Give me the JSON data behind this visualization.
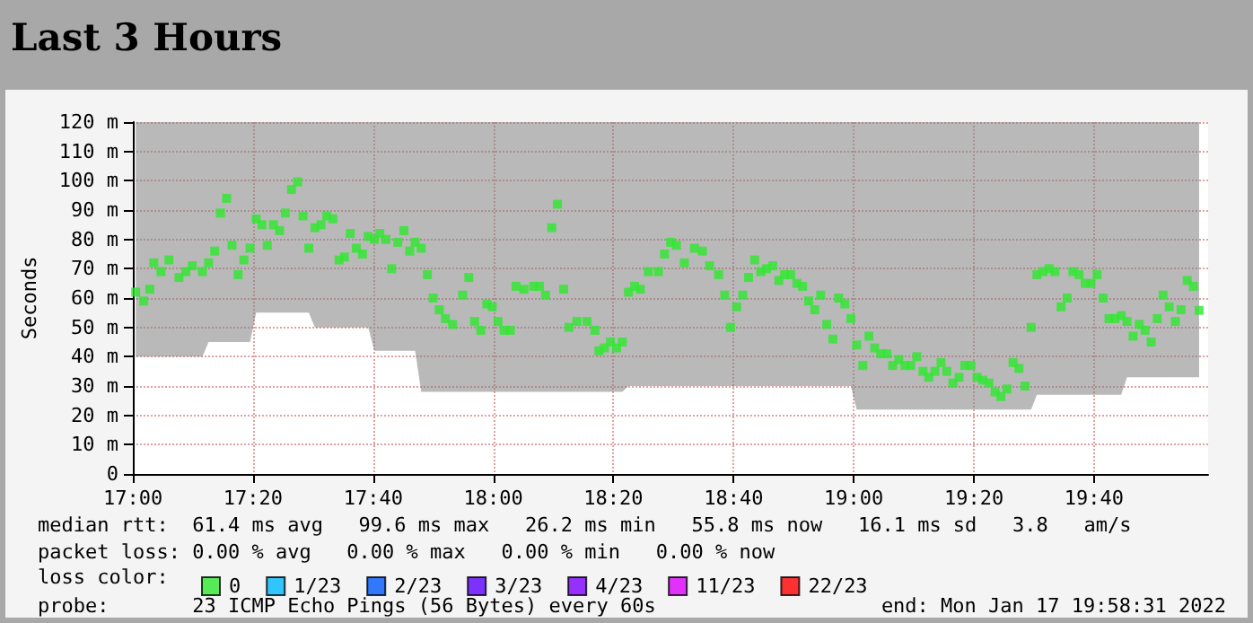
{
  "chart_data": {
    "type": "scatter",
    "title": "Last 3 Hours",
    "ylabel": "Seconds",
    "legend_title": "loss color:",
    "legend": "bottom",
    "grid": true,
    "marker": "square",
    "xlim": [
      17,
      19.983
    ],
    "xticks": [
      {
        "value": 17,
        "label": "17:00"
      },
      {
        "value": 17.3333,
        "label": "17:20"
      },
      {
        "value": 17.6667,
        "label": "17:40"
      },
      {
        "value": 18,
        "label": "18:00"
      },
      {
        "value": 18.3333,
        "label": "18:20"
      },
      {
        "value": 18.6667,
        "label": "18:40"
      },
      {
        "value": 19,
        "label": "19:00"
      },
      {
        "value": 19.3333,
        "label": "19:20"
      },
      {
        "value": 19.6667,
        "label": "19:40"
      }
    ],
    "ylim": [
      0,
      120
    ],
    "yticks": [
      {
        "value": 0,
        "label": "0"
      },
      {
        "value": 10,
        "label": "10 m"
      },
      {
        "value": 20,
        "label": "20 m"
      },
      {
        "value": 30,
        "label": "30 m"
      },
      {
        "value": 40,
        "label": "40 m"
      },
      {
        "value": 50,
        "label": "50 m"
      },
      {
        "value": 60,
        "label": "60 m"
      },
      {
        "value": 70,
        "label": "70 m"
      },
      {
        "value": 80,
        "label": "80 m"
      },
      {
        "value": 90,
        "label": "90 m"
      },
      {
        "value": 100,
        "label": "100 m"
      },
      {
        "value": 110,
        "label": "110 m"
      },
      {
        "value": 120,
        "label": "120 m"
      }
    ],
    "series": [
      {
        "name": "0",
        "color": "#2ee82e",
        "x": [
          17.008,
          17.03,
          17.047,
          17.058,
          17.078,
          17.1,
          17.128,
          17.147,
          17.165,
          17.193,
          17.21,
          17.227,
          17.243,
          17.26,
          17.275,
          17.292,
          17.308,
          17.325,
          17.342,
          17.358,
          17.373,
          17.39,
          17.407,
          17.423,
          17.44,
          17.457,
          17.472,
          17.488,
          17.505,
          17.522,
          17.538,
          17.555,
          17.572,
          17.587,
          17.603,
          17.62,
          17.637,
          17.653,
          17.67,
          17.685,
          17.702,
          17.718,
          17.735,
          17.752,
          17.768,
          17.783,
          17.8,
          17.817,
          17.833,
          17.85,
          17.867,
          17.887,
          17.915,
          17.932,
          17.948,
          17.965,
          17.982,
          17.997,
          18.013,
          18.03,
          18.047,
          18.063,
          18.085,
          18.112,
          18.128,
          18.145,
          18.162,
          18.178,
          18.195,
          18.21,
          18.232,
          18.26,
          18.282,
          18.293,
          18.308,
          18.325,
          18.342,
          18.358,
          18.375,
          18.392,
          18.408,
          18.43,
          18.458,
          18.475,
          18.492,
          18.508,
          18.53,
          18.558,
          18.58,
          18.6,
          18.625,
          18.642,
          18.658,
          18.675,
          18.692,
          18.708,
          18.725,
          18.742,
          18.758,
          18.775,
          18.792,
          18.808,
          18.825,
          18.842,
          18.858,
          18.875,
          18.892,
          18.908,
          18.925,
          18.942,
          18.958,
          18.975,
          18.992,
          19.008,
          19.025,
          19.042,
          19.058,
          19.075,
          19.092,
          19.108,
          19.125,
          19.142,
          19.158,
          19.175,
          19.192,
          19.208,
          19.225,
          19.242,
          19.258,
          19.275,
          19.292,
          19.308,
          19.325,
          19.342,
          19.358,
          19.375,
          19.392,
          19.408,
          19.425,
          19.442,
          19.458,
          19.475,
          19.492,
          19.508,
          19.525,
          19.542,
          19.558,
          19.575,
          19.592,
          19.608,
          19.625,
          19.642,
          19.658,
          19.675,
          19.692,
          19.708,
          19.725,
          19.742,
          19.758,
          19.775,
          19.792,
          19.808,
          19.825,
          19.842,
          19.858,
          19.875,
          19.892,
          19.908,
          19.925,
          19.942,
          19.958
        ],
        "values": [
          62,
          59,
          63,
          72,
          69,
          73,
          67,
          69,
          71,
          69,
          72,
          76,
          89,
          94,
          78,
          68,
          73,
          77,
          87,
          85,
          78,
          85,
          83,
          89,
          97,
          99.6,
          88,
          77,
          84,
          85,
          88,
          87,
          73,
          74,
          82,
          77,
          75,
          81,
          80,
          82,
          80,
          70,
          79,
          83,
          76,
          79,
          77,
          68,
          60,
          56,
          53,
          51,
          61,
          67,
          52,
          49,
          58,
          57,
          52,
          49,
          49,
          64,
          63,
          64,
          64,
          61,
          84,
          92,
          63,
          50,
          52,
          52,
          49,
          42,
          43,
          45,
          43,
          45,
          62,
          64,
          63,
          69,
          69,
          75,
          79,
          78,
          72,
          77,
          76,
          71,
          68,
          61,
          50,
          57,
          61,
          67,
          73,
          69,
          70,
          71,
          66,
          68,
          68,
          65,
          64,
          59,
          56,
          61,
          51,
          46,
          60,
          58,
          53,
          44,
          37,
          47,
          43,
          41,
          41,
          37,
          39,
          37,
          37,
          40,
          35,
          33,
          35,
          38,
          35,
          31,
          33,
          37,
          37,
          33,
          32,
          31,
          28,
          26.4,
          29,
          38,
          36,
          30,
          50,
          68,
          69,
          70,
          69,
          57,
          60,
          69,
          68,
          65,
          65,
          68,
          60,
          53,
          53,
          54,
          52,
          47,
          51,
          49,
          45,
          53,
          61,
          57,
          52,
          56,
          66,
          64,
          55.8
        ],
        "lower": [
          40,
          40,
          40,
          40,
          40,
          40,
          40,
          40,
          40,
          40,
          45,
          45,
          45,
          45,
          45,
          45,
          45,
          45,
          55,
          55,
          55,
          55,
          55,
          55,
          55,
          55,
          55,
          55,
          50,
          50,
          50,
          50,
          50,
          50,
          50,
          50,
          50,
          50,
          42,
          42,
          42,
          42,
          42,
          42,
          42,
          42,
          28,
          28,
          28,
          28,
          28,
          28,
          28,
          28,
          28,
          28,
          28,
          28,
          28,
          28,
          28,
          28,
          28,
          28,
          28,
          28,
          28,
          28,
          28,
          28,
          28,
          28,
          28,
          28,
          28,
          28,
          28,
          28,
          30,
          30,
          30,
          30,
          30,
          30,
          30,
          30,
          30,
          30,
          30,
          30,
          30,
          30,
          30,
          30,
          30,
          30,
          30,
          30,
          30,
          30,
          30,
          30,
          30,
          30,
          30,
          30,
          30,
          30,
          30,
          30,
          30,
          30,
          30,
          22,
          22,
          22,
          22,
          22,
          22,
          22,
          22,
          22,
          22,
          22,
          22,
          22,
          22,
          22,
          22,
          22,
          22,
          22,
          22,
          22,
          22,
          22,
          22,
          22,
          22,
          22,
          22,
          22,
          22,
          27,
          27,
          27,
          27,
          27,
          27,
          27,
          27,
          27,
          27,
          27,
          27,
          27,
          27,
          27,
          33,
          33,
          33,
          33,
          33,
          33,
          33,
          33,
          33,
          33,
          33,
          33,
          33
        ],
        "upper": [
          120,
          120,
          120,
          120,
          120,
          120,
          120,
          120,
          120,
          120,
          120,
          120,
          120,
          120,
          120,
          120,
          120,
          120,
          120,
          120,
          120,
          120,
          120,
          120,
          120,
          120,
          120,
          120,
          120,
          120,
          120,
          120,
          120,
          120,
          120,
          120,
          120,
          120,
          120,
          120,
          120,
          120,
          120,
          120,
          120,
          120,
          120,
          120,
          120,
          120,
          120,
          120,
          120,
          120,
          120,
          120,
          120,
          120,
          120,
          120,
          120,
          120,
          120,
          120,
          120,
          120,
          120,
          120,
          120,
          120,
          120,
          120,
          120,
          120,
          120,
          120,
          120,
          120,
          120,
          120,
          120,
          120,
          120,
          120,
          120,
          120,
          120,
          120,
          120,
          120,
          120,
          120,
          120,
          120,
          120,
          120,
          120,
          120,
          120,
          120,
          120,
          120,
          120,
          120,
          120,
          120,
          120,
          120,
          120,
          120,
          120,
          120,
          120,
          120,
          120,
          120,
          120,
          120,
          120,
          120,
          120,
          120,
          120,
          120,
          120,
          120,
          120,
          120,
          120,
          120,
          120,
          120,
          120,
          120,
          120,
          120,
          120,
          120,
          120,
          120,
          120,
          120,
          120,
          120,
          120,
          120,
          120,
          120,
          120,
          120,
          120,
          120,
          120,
          120,
          120,
          120,
          120,
          120,
          120,
          120,
          120,
          120,
          120,
          120,
          120,
          120,
          120,
          120,
          120,
          120,
          120
        ]
      },
      {
        "name": "1/23",
        "color": "#00b8ff"
      },
      {
        "name": "2/23",
        "color": "#0059ff"
      },
      {
        "name": "3/23",
        "color": "#5e00ff"
      },
      {
        "name": "4/23",
        "color": "#7e00ff"
      },
      {
        "name": "11/23",
        "color": "#dd00ff"
      },
      {
        "name": "22/23",
        "color": "#ff0000"
      }
    ],
    "annotations": [
      "median rtt:  61.4 ms avg   99.6 ms max   26.2 ms min   55.8 ms now   16.1 ms sd   3.8   am/s",
      "packet loss: 0.00 % avg   0.00 % max   0.00 % min   0.00 % now",
      "probe:       23 ICMP Echo Pings (56 Bytes) every 60s",
      "end: Mon Jan 17 19:58:31 2022"
    ]
  }
}
